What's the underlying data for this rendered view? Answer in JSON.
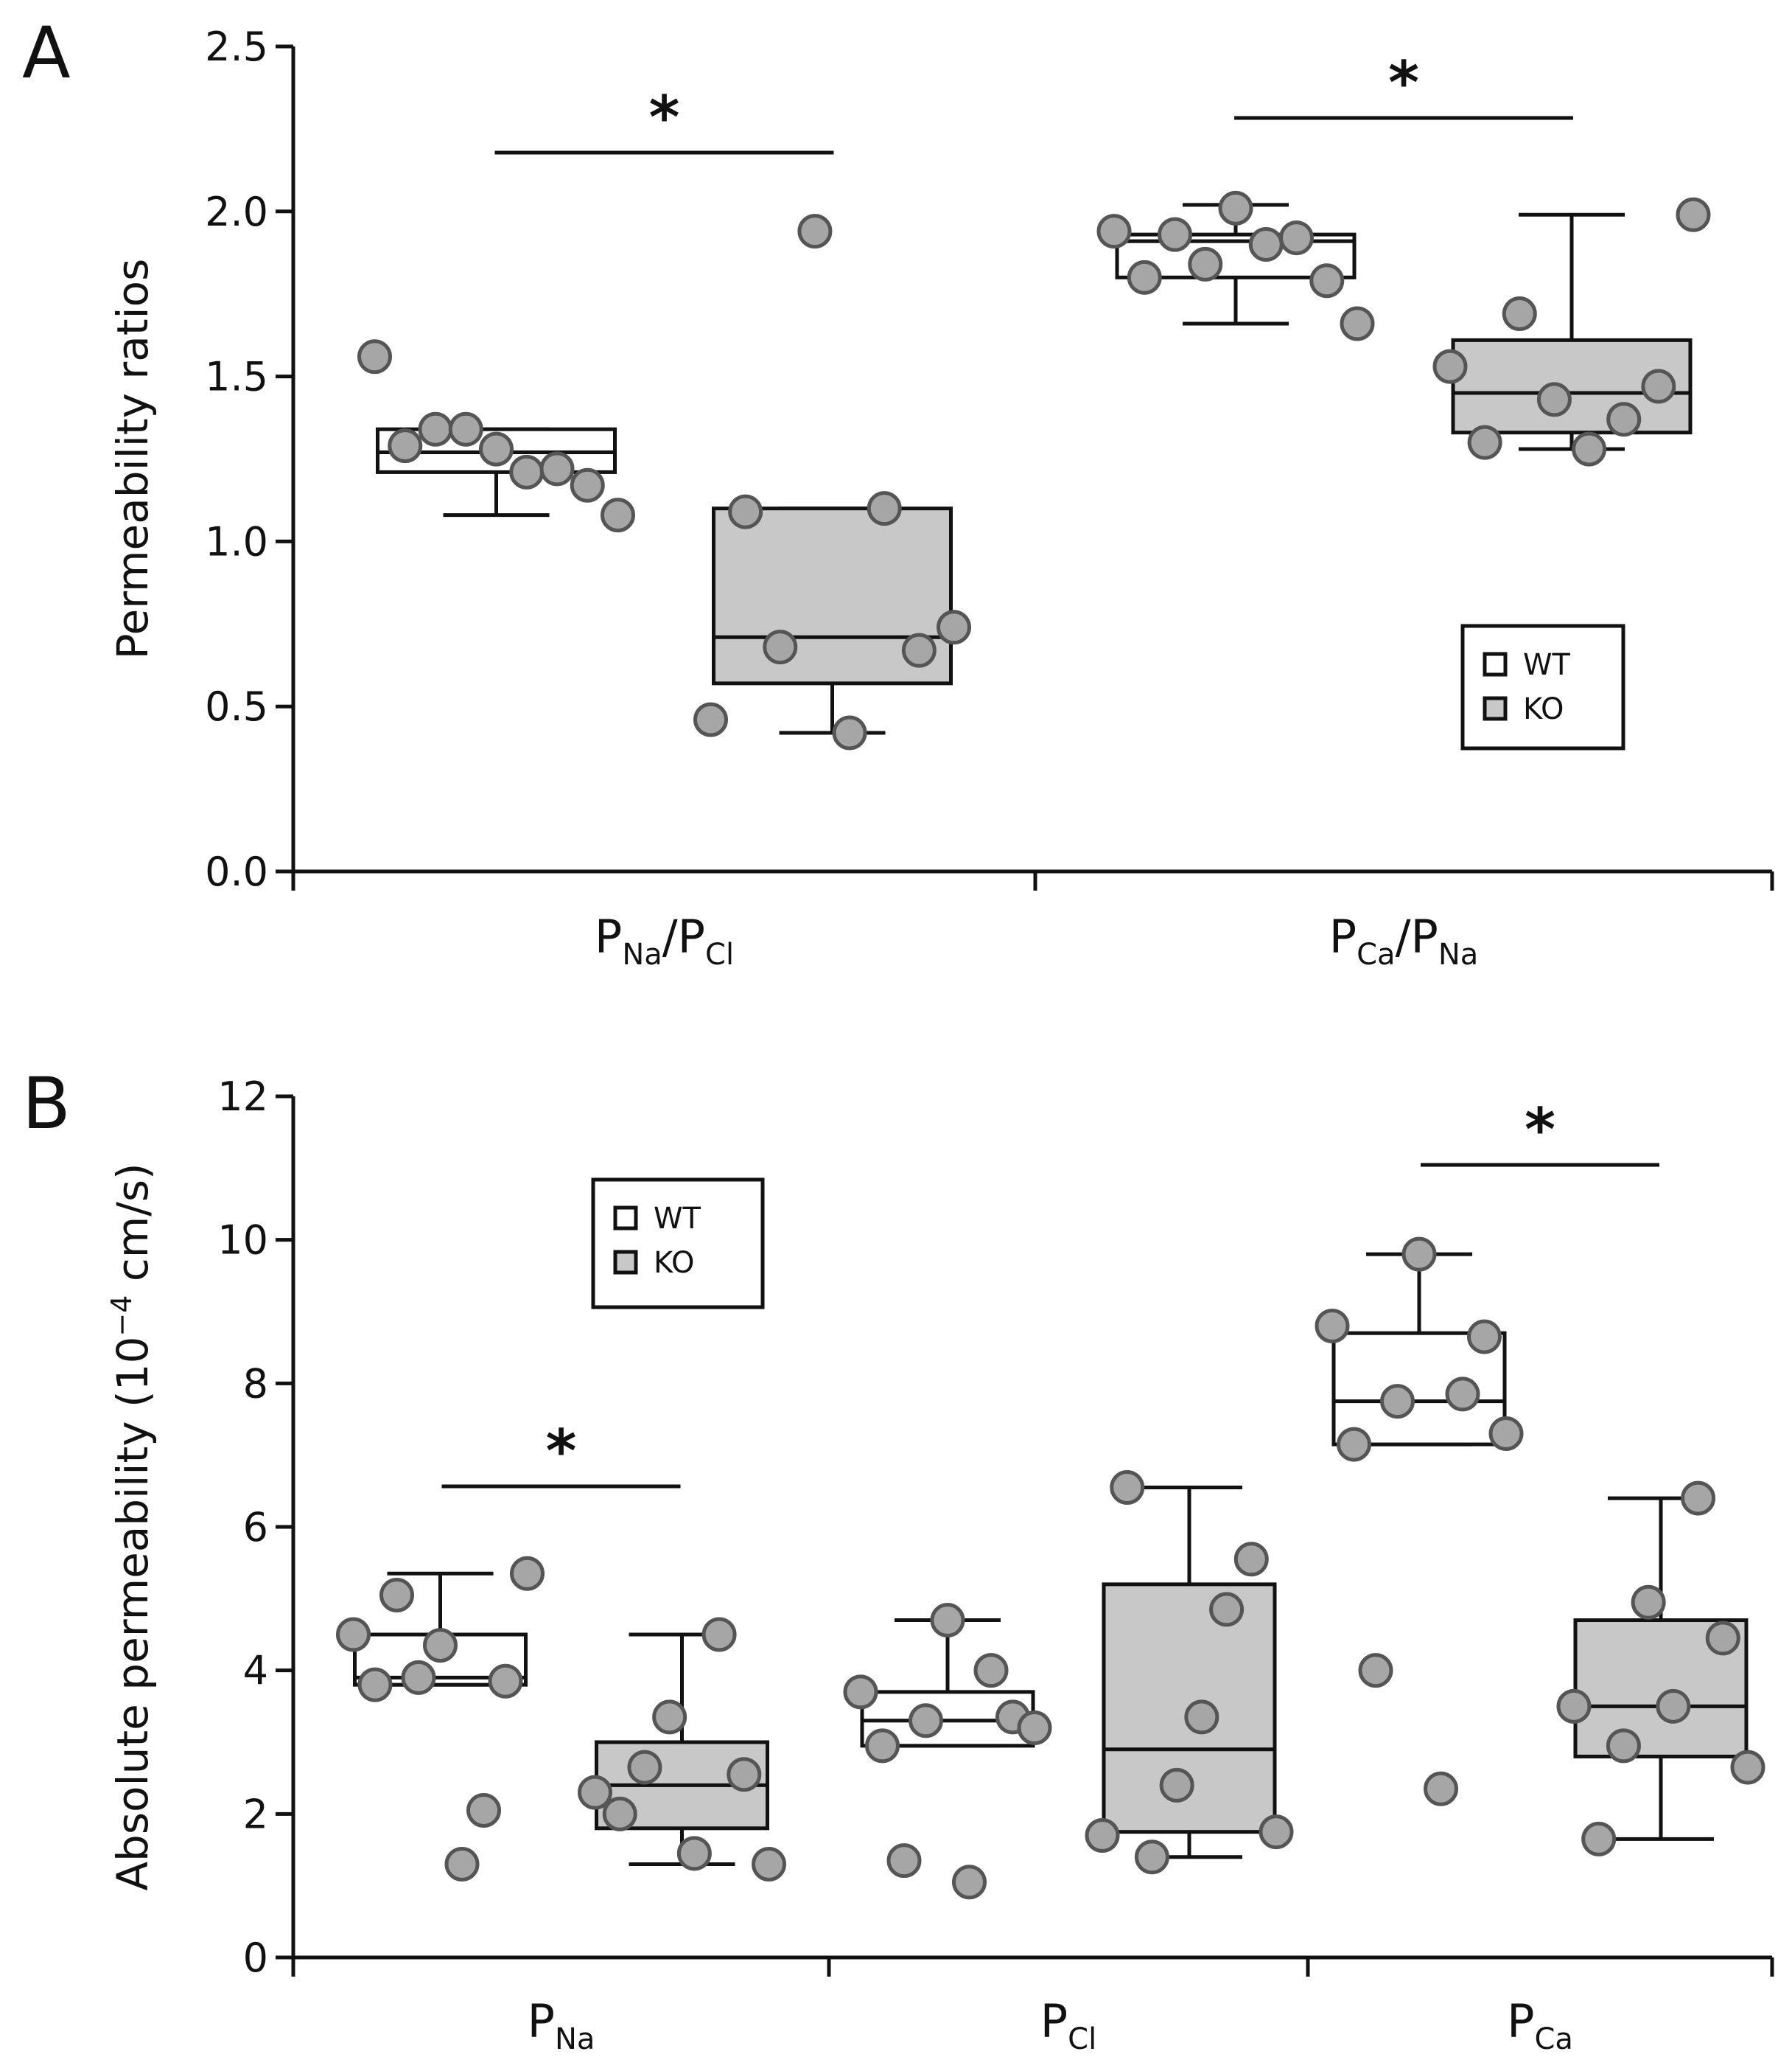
{
  "chart_data": [
    {
      "panel": "A",
      "type": "box",
      "ylabel": "Permeability ratios",
      "xlabel": "",
      "ylim": [
        0,
        2.5
      ],
      "yticks": [
        "0.0",
        "0.5",
        "1.0",
        "1.5",
        "2.0",
        "2.5"
      ],
      "categories": [
        {
          "main": "P",
          "subs": [
            "Na",
            "Cl"
          ],
          "sep": "/"
        },
        {
          "main": "P",
          "subs": [
            "Ca",
            "Na"
          ],
          "sep": "/"
        }
      ],
      "legend": {
        "position": "lower-right",
        "entries": [
          "WT",
          "KO"
        ]
      },
      "significance": [
        {
          "category": 0,
          "label": "*"
        },
        {
          "category": 1,
          "label": "*"
        }
      ],
      "series": [
        {
          "name": "WT",
          "color": "#ffffff",
          "boxes": [
            {
              "whisker_low": 1.08,
              "q1": 1.21,
              "median": 1.27,
              "q3": 1.34,
              "whisker_high": 1.34,
              "points": [
                1.56,
                1.29,
                1.34,
                1.34,
                1.28,
                1.21,
                1.22,
                1.17,
                1.08
              ]
            },
            {
              "whisker_low": 1.66,
              "q1": 1.8,
              "median": 1.91,
              "q3": 1.93,
              "whisker_high": 2.02,
              "points": [
                1.94,
                1.8,
                1.93,
                1.84,
                2.01,
                1.9,
                1.92,
                1.79,
                1.66
              ]
            }
          ]
        },
        {
          "name": "KO",
          "color": "#c8c8c8",
          "boxes": [
            {
              "whisker_low": 0.42,
              "q1": 0.57,
              "median": 0.71,
              "q3": 1.1,
              "whisker_high": 1.1,
              "points": [
                0.46,
                1.09,
                0.68,
                1.94,
                0.42,
                1.1,
                0.67,
                0.74
              ]
            },
            {
              "whisker_low": 1.28,
              "q1": 1.33,
              "median": 1.45,
              "q3": 1.61,
              "whisker_high": 1.99,
              "points": [
                1.53,
                1.3,
                1.69,
                1.43,
                1.28,
                1.37,
                1.47,
                1.99
              ]
            }
          ]
        }
      ]
    },
    {
      "panel": "B",
      "type": "box",
      "ylabel": "Absolute permeability",
      "ylabel_unit": {
        "base": "(10",
        "sup": "−4",
        "rest": " cm/s)"
      },
      "xlabel": "",
      "ylim": [
        0,
        12
      ],
      "yticks": [
        "0",
        "2",
        "4",
        "6",
        "8",
        "10",
        "12"
      ],
      "categories": [
        {
          "main": "P",
          "subs": [
            "Na"
          ],
          "sep": ""
        },
        {
          "main": "P",
          "subs": [
            "Cl"
          ],
          "sep": ""
        },
        {
          "main": "P",
          "subs": [
            "Ca"
          ],
          "sep": ""
        }
      ],
      "legend": {
        "position": "upper-left",
        "entries": [
          "WT",
          "KO"
        ]
      },
      "significance": [
        {
          "category": 0,
          "label": "*"
        },
        {
          "category": 2,
          "label": "*"
        }
      ],
      "series": [
        {
          "name": "WT",
          "color": "#ffffff",
          "boxes": [
            {
              "whisker_low": 3.8,
              "q1": 3.8,
              "median": 3.9,
              "q3": 4.5,
              "whisker_high": 5.35,
              "points": [
                4.5,
                3.8,
                5.05,
                3.9,
                4.35,
                1.3,
                2.05,
                3.85,
                5.35
              ]
            },
            {
              "whisker_low": 2.95,
              "q1": 2.95,
              "median": 3.3,
              "q3": 3.7,
              "whisker_high": 4.7,
              "points": [
                3.7,
                2.95,
                1.35,
                3.3,
                4.7,
                1.05,
                4.0,
                3.35,
                3.2
              ]
            },
            {
              "whisker_low": 7.15,
              "q1": 7.15,
              "median": 7.75,
              "q3": 8.7,
              "whisker_high": 9.8,
              "points": [
                8.8,
                7.15,
                4.0,
                7.75,
                9.8,
                2.35,
                7.85,
                8.65,
                7.3
              ]
            }
          ]
        },
        {
          "name": "KO",
          "color": "#c8c8c8",
          "boxes": [
            {
              "whisker_low": 1.3,
              "q1": 1.8,
              "median": 2.4,
              "q3": 3.0,
              "whisker_high": 4.5,
              "points": [
                2.3,
                2.0,
                2.65,
                3.35,
                1.45,
                4.5,
                2.55,
                1.3
              ]
            },
            {
              "whisker_low": 1.4,
              "q1": 1.75,
              "median": 2.9,
              "q3": 5.2,
              "whisker_high": 6.55,
              "points": [
                1.7,
                6.55,
                1.4,
                2.4,
                3.35,
                4.85,
                5.55,
                1.75
              ]
            },
            {
              "whisker_low": 1.65,
              "q1": 2.8,
              "median": 3.5,
              "q3": 4.7,
              "whisker_high": 6.4,
              "points": [
                3.5,
                1.65,
                2.95,
                4.95,
                3.5,
                6.4,
                4.45,
                2.65
              ]
            }
          ]
        }
      ]
    }
  ]
}
